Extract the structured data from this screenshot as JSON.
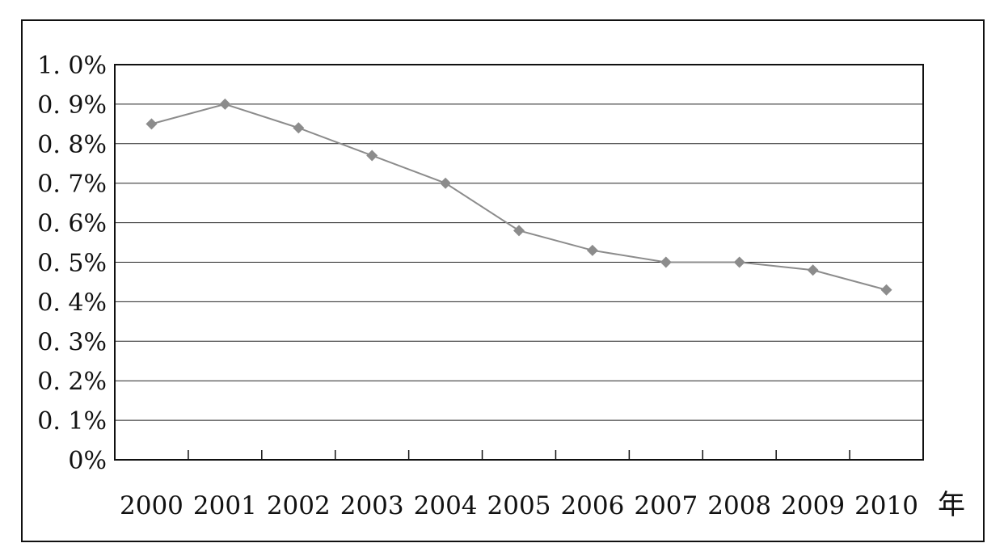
{
  "chart_data": {
    "type": "line",
    "title": "",
    "xlabel": "年",
    "ylabel": "",
    "categories": [
      "2000",
      "2001",
      "2002",
      "2003",
      "2004",
      "2005",
      "2006",
      "2007",
      "2008",
      "2009",
      "2010"
    ],
    "series": [
      {
        "values": [
          0.85,
          0.9,
          0.84,
          0.77,
          0.7,
          0.58,
          0.53,
          0.5,
          0.5,
          0.48,
          0.43
        ]
      }
    ],
    "yticks": [
      "0%",
      "0. 1%",
      "0. 2%",
      "0. 3%",
      "0. 4%",
      "0. 5%",
      "0. 6%",
      "0. 7%",
      "0. 8%",
      "0. 9%",
      "1. 0%"
    ],
    "ylim": [
      0,
      1.0
    ],
    "y_unit": "%",
    "grid": true,
    "colors": {
      "line": "#8c8c8c",
      "marker": "#8c8c8c",
      "grid": "#222222",
      "frame": "#111111"
    }
  }
}
